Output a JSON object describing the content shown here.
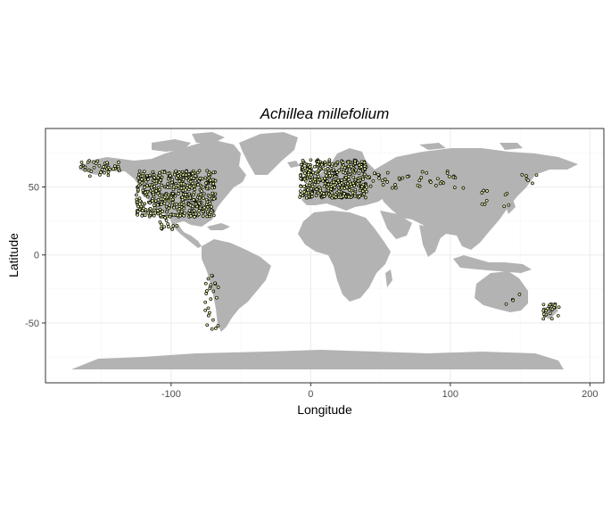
{
  "chart_data": {
    "type": "scatter",
    "title": "Achillea millefolium",
    "xlabel": "Longitude",
    "ylabel": "Latitude",
    "xlim": [
      -190,
      210
    ],
    "ylim": [
      -94,
      93
    ],
    "x_ticks": [
      -100,
      0,
      100,
      200
    ],
    "x_tick_labels": [
      "-100",
      "0",
      "100",
      "200"
    ],
    "y_ticks": [
      -50,
      0,
      50
    ],
    "y_tick_labels": [
      "-50",
      "0",
      "50"
    ],
    "grid": true,
    "legend": "none",
    "colors": {
      "land": "#b3b3b3",
      "point_fill": "#e6f0a0",
      "point_stroke": "#000000",
      "grid_major": "#ebebeb",
      "grid_minor": "#f5f5f5",
      "panel_border": "#333333"
    },
    "occurrence_clusters": [
      {
        "region": "North America",
        "lon_range": [
          -125,
          -68
        ],
        "lat_range": [
          28,
          62
        ],
        "count": 480
      },
      {
        "region": "Alaska",
        "lon_range": [
          -165,
          -135
        ],
        "lat_range": [
          58,
          70
        ],
        "count": 40
      },
      {
        "region": "Mexico",
        "lon_range": [
          -108,
          -95
        ],
        "lat_range": [
          18,
          30
        ],
        "count": 18
      },
      {
        "region": "Europe",
        "lon_range": [
          -8,
          40
        ],
        "lat_range": [
          42,
          70
        ],
        "count": 420
      },
      {
        "region": "Russia",
        "lon_range": [
          40,
          110
        ],
        "lat_range": [
          48,
          62
        ],
        "count": 45
      },
      {
        "region": "East Asia",
        "lon_range": [
          120,
          145
        ],
        "lat_range": [
          35,
          55
        ],
        "count": 10
      },
      {
        "region": "Kamchatka",
        "lon_range": [
          150,
          162
        ],
        "lat_range": [
          52,
          60
        ],
        "count": 6
      },
      {
        "region": "South America Andes",
        "lon_range": [
          -76,
          -66
        ],
        "lat_range": [
          -55,
          -15
        ],
        "count": 25
      },
      {
        "region": "Australia SE",
        "lon_range": [
          140,
          152
        ],
        "lat_range": [
          -43,
          -28
        ],
        "count": 4
      },
      {
        "region": "New Zealand",
        "lon_range": [
          166,
          178
        ],
        "lat_range": [
          -47,
          -36
        ],
        "count": 26
      }
    ]
  }
}
